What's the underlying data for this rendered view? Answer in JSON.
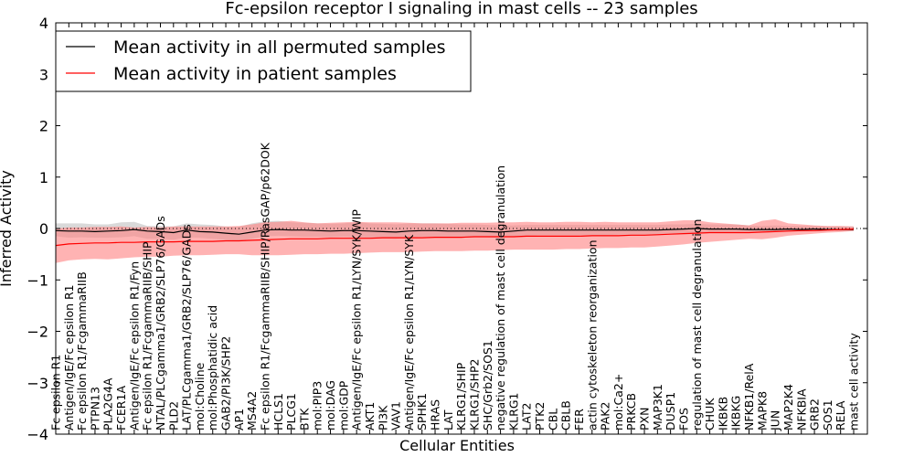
{
  "chart_data": {
    "type": "line",
    "title": "Fc-epsilon receptor I signaling in mast cells -- 23 samples",
    "xlabel": "Cellular Entities",
    "ylabel": "Inferred Activity",
    "ylim": [
      -4,
      4
    ],
    "yticks": [
      -4,
      -3,
      -2,
      -1,
      0,
      1,
      2,
      3,
      4
    ],
    "ytick_labels": [
      "−4",
      "−3",
      "−2",
      "−1",
      "0",
      "1",
      "2",
      "3",
      "4"
    ],
    "legend_position": "top-left",
    "colors": {
      "permuted": "#000000",
      "patient": "#ff0000",
      "patient_band": "#ff8080",
      "permuted_band": "#aaaaaa"
    },
    "categories": [
      "Fc epsilon R1",
      "Antigen/IgE/Fc epsilon R1",
      "Fc epsilon R1/FcgammaRIIB",
      "PTPN13",
      "PLA2G4A",
      "FCER1A",
      "Antigen/IgE/Fc epsilon R1/Fyn",
      "Fc epsilon R1/FcgammaRIIB/SHIP",
      "NTAL/PLCgamma1/GRB2/SLP76/GADs",
      "PLD2",
      "LAT/PLCgamma1/GRB2/SLP76/GADs",
      "mol:Choline",
      "mol:Phosphatidic acid",
      "GAB2/PI3K/SHP2",
      "AP1",
      "MS4A2",
      "Fc epsilon R1/FcgammaRIIB/SHIP/RasGAP/p62DOK",
      "HCLS1",
      "PLCG1",
      "BTK",
      "mol:PIP3",
      "mol:DAG",
      "mol:GDP",
      "Antigen/IgE/Fc epsilon R1/LYN/SYK/WIP",
      "AKT1",
      "PI3K",
      "VAV1",
      "Antigen/IgE/Fc epsilon R1/LYN/SYK",
      "SPHK1",
      "HRAS",
      "LAT",
      "KLRG1/SHIP",
      "KLRG1/SHP2",
      "SHC/Grb2/SOS1",
      "negative regulation of mast cell degranulation",
      "KLRG1",
      "LAT2",
      "PTK2",
      "CBL",
      "CBLB",
      "FER",
      "actin cytoskeleton reorganization",
      "PAK2",
      "mol:Ca2+",
      "PRKCB",
      "PXN",
      "MAP3K1",
      "DUSP1",
      "FOS",
      "regulation of mast cell degranulation",
      "CHUK",
      "IKBKB",
      "IKBKG",
      "NFKB1/RelA",
      "MAPK8",
      "JUN",
      "MAP2K4",
      "NFKBIA",
      "GRB2",
      "SOS1",
      "RELA",
      "mast cell activity"
    ],
    "series": [
      {
        "name": "Mean activity in all permuted samples",
        "values": [
          -0.04,
          -0.05,
          -0.05,
          -0.06,
          -0.05,
          -0.04,
          -0.02,
          -0.05,
          -0.06,
          -0.08,
          -0.03,
          -0.06,
          -0.07,
          -0.09,
          -0.11,
          -0.07,
          -0.03,
          -0.02,
          -0.03,
          -0.03,
          -0.04,
          -0.05,
          -0.04,
          -0.04,
          -0.05,
          -0.06,
          -0.07,
          -0.05,
          -0.04,
          -0.04,
          -0.05,
          -0.05,
          -0.05,
          -0.06,
          -0.07,
          -0.05,
          -0.03,
          -0.03,
          -0.03,
          -0.03,
          -0.03,
          -0.03,
          -0.03,
          -0.03,
          -0.03,
          -0.03,
          -0.03,
          -0.02,
          -0.01,
          0.0,
          -0.01,
          -0.01,
          -0.01,
          -0.02,
          -0.02,
          -0.02,
          -0.01,
          -0.02,
          -0.01,
          -0.02,
          -0.02,
          -0.02
        ],
        "band": [
          [
            -0.15,
            0.1
          ],
          [
            -0.18,
            0.1
          ],
          [
            -0.17,
            0.1
          ],
          [
            -0.18,
            0.08
          ],
          [
            -0.18,
            0.08
          ],
          [
            -0.17,
            0.12
          ],
          [
            -0.15,
            0.13
          ],
          [
            -0.2,
            0.05
          ],
          [
            -0.2,
            0.05
          ],
          [
            -0.22,
            0.04
          ],
          [
            -0.17,
            0.1
          ],
          [
            -0.18,
            0.08
          ],
          [
            -0.2,
            0.07
          ],
          [
            -0.22,
            0.04
          ],
          [
            -0.24,
            0.03
          ],
          [
            -0.2,
            0.1
          ],
          [
            -0.15,
            0.14
          ],
          [
            -0.14,
            0.15
          ],
          [
            -0.15,
            0.12
          ],
          [
            -0.16,
            0.11
          ],
          [
            -0.16,
            0.1
          ],
          [
            -0.17,
            0.09
          ],
          [
            -0.16,
            0.1
          ],
          [
            -0.17,
            0.12
          ],
          [
            -0.18,
            0.1
          ],
          [
            -0.19,
            0.09
          ],
          [
            -0.2,
            0.08
          ],
          [
            -0.17,
            0.1
          ],
          [
            -0.16,
            0.1
          ],
          [
            -0.16,
            0.1
          ],
          [
            -0.16,
            0.09
          ],
          [
            -0.16,
            0.08
          ],
          [
            -0.16,
            0.08
          ],
          [
            -0.17,
            0.07
          ],
          [
            -0.18,
            0.06
          ],
          [
            -0.16,
            0.06
          ],
          [
            -0.14,
            0.07
          ],
          [
            -0.13,
            0.07
          ],
          [
            -0.13,
            0.07
          ],
          [
            -0.13,
            0.07
          ],
          [
            -0.13,
            0.07
          ],
          [
            -0.13,
            0.07
          ],
          [
            -0.13,
            0.07
          ],
          [
            -0.12,
            0.07
          ],
          [
            -0.12,
            0.07
          ],
          [
            -0.12,
            0.07
          ],
          [
            -0.12,
            0.07
          ],
          [
            -0.1,
            0.08
          ],
          [
            -0.09,
            0.08
          ],
          [
            -0.08,
            0.09
          ],
          [
            -0.08,
            0.08
          ],
          [
            -0.08,
            0.08
          ],
          [
            -0.08,
            0.08
          ],
          [
            -0.08,
            0.06
          ],
          [
            -0.08,
            0.05
          ],
          [
            -0.07,
            0.06
          ],
          [
            -0.06,
            0.05
          ],
          [
            -0.06,
            0.05
          ],
          [
            -0.05,
            0.05
          ],
          [
            -0.05,
            0.04
          ],
          [
            -0.05,
            0.04
          ],
          [
            -0.05,
            0.04
          ]
        ]
      },
      {
        "name": "Mean activity in patient samples",
        "values": [
          -0.33,
          -0.3,
          -0.29,
          -0.28,
          -0.28,
          -0.27,
          -0.27,
          -0.26,
          -0.26,
          -0.26,
          -0.25,
          -0.25,
          -0.25,
          -0.24,
          -0.24,
          -0.23,
          -0.22,
          -0.21,
          -0.2,
          -0.2,
          -0.2,
          -0.19,
          -0.19,
          -0.19,
          -0.19,
          -0.18,
          -0.18,
          -0.18,
          -0.18,
          -0.17,
          -0.17,
          -0.17,
          -0.16,
          -0.16,
          -0.16,
          -0.16,
          -0.15,
          -0.15,
          -0.15,
          -0.15,
          -0.15,
          -0.14,
          -0.14,
          -0.14,
          -0.13,
          -0.13,
          -0.12,
          -0.11,
          -0.1,
          -0.09,
          -0.08,
          -0.08,
          -0.08,
          -0.08,
          -0.07,
          -0.06,
          -0.05,
          -0.04,
          -0.04,
          -0.03,
          -0.02,
          -0.01
        ],
        "band": [
          [
            -0.67,
            0.0
          ],
          [
            -0.62,
            0.02
          ],
          [
            -0.6,
            0.02
          ],
          [
            -0.59,
            0.03
          ],
          [
            -0.6,
            0.03
          ],
          [
            -0.58,
            0.04
          ],
          [
            -0.56,
            0.02
          ],
          [
            -0.55,
            0.03
          ],
          [
            -0.55,
            0.02
          ],
          [
            -0.53,
            0.04
          ],
          [
            -0.52,
            0.04
          ],
          [
            -0.52,
            0.04
          ],
          [
            -0.51,
            0.04
          ],
          [
            -0.5,
            0.04
          ],
          [
            -0.5,
            0.05
          ],
          [
            -0.52,
            0.08
          ],
          [
            -0.52,
            0.12
          ],
          [
            -0.52,
            0.13
          ],
          [
            -0.51,
            0.15
          ],
          [
            -0.5,
            0.12
          ],
          [
            -0.5,
            0.1
          ],
          [
            -0.49,
            0.11
          ],
          [
            -0.49,
            0.12
          ],
          [
            -0.48,
            0.13
          ],
          [
            -0.47,
            0.12
          ],
          [
            -0.46,
            0.12
          ],
          [
            -0.46,
            0.12
          ],
          [
            -0.46,
            0.11
          ],
          [
            -0.45,
            0.1
          ],
          [
            -0.44,
            0.1
          ],
          [
            -0.44,
            0.1
          ],
          [
            -0.44,
            0.11
          ],
          [
            -0.43,
            0.11
          ],
          [
            -0.43,
            0.11
          ],
          [
            -0.42,
            0.12
          ],
          [
            -0.41,
            0.12
          ],
          [
            -0.41,
            0.13
          ],
          [
            -0.41,
            0.12
          ],
          [
            -0.41,
            0.12
          ],
          [
            -0.4,
            0.13
          ],
          [
            -0.4,
            0.13
          ],
          [
            -0.39,
            0.12
          ],
          [
            -0.38,
            0.13
          ],
          [
            -0.38,
            0.12
          ],
          [
            -0.37,
            0.12
          ],
          [
            -0.37,
            0.12
          ],
          [
            -0.35,
            0.12
          ],
          [
            -0.33,
            0.14
          ],
          [
            -0.31,
            0.16
          ],
          [
            -0.28,
            0.16
          ],
          [
            -0.26,
            0.12
          ],
          [
            -0.24,
            0.1
          ],
          [
            -0.22,
            0.08
          ],
          [
            -0.2,
            0.06
          ],
          [
            -0.21,
            0.15
          ],
          [
            -0.18,
            0.18
          ],
          [
            -0.14,
            0.1
          ],
          [
            -0.12,
            0.08
          ],
          [
            -0.1,
            0.06
          ],
          [
            -0.08,
            0.05
          ],
          [
            -0.07,
            0.05
          ],
          [
            -0.05,
            0.04
          ]
        ]
      }
    ]
  }
}
